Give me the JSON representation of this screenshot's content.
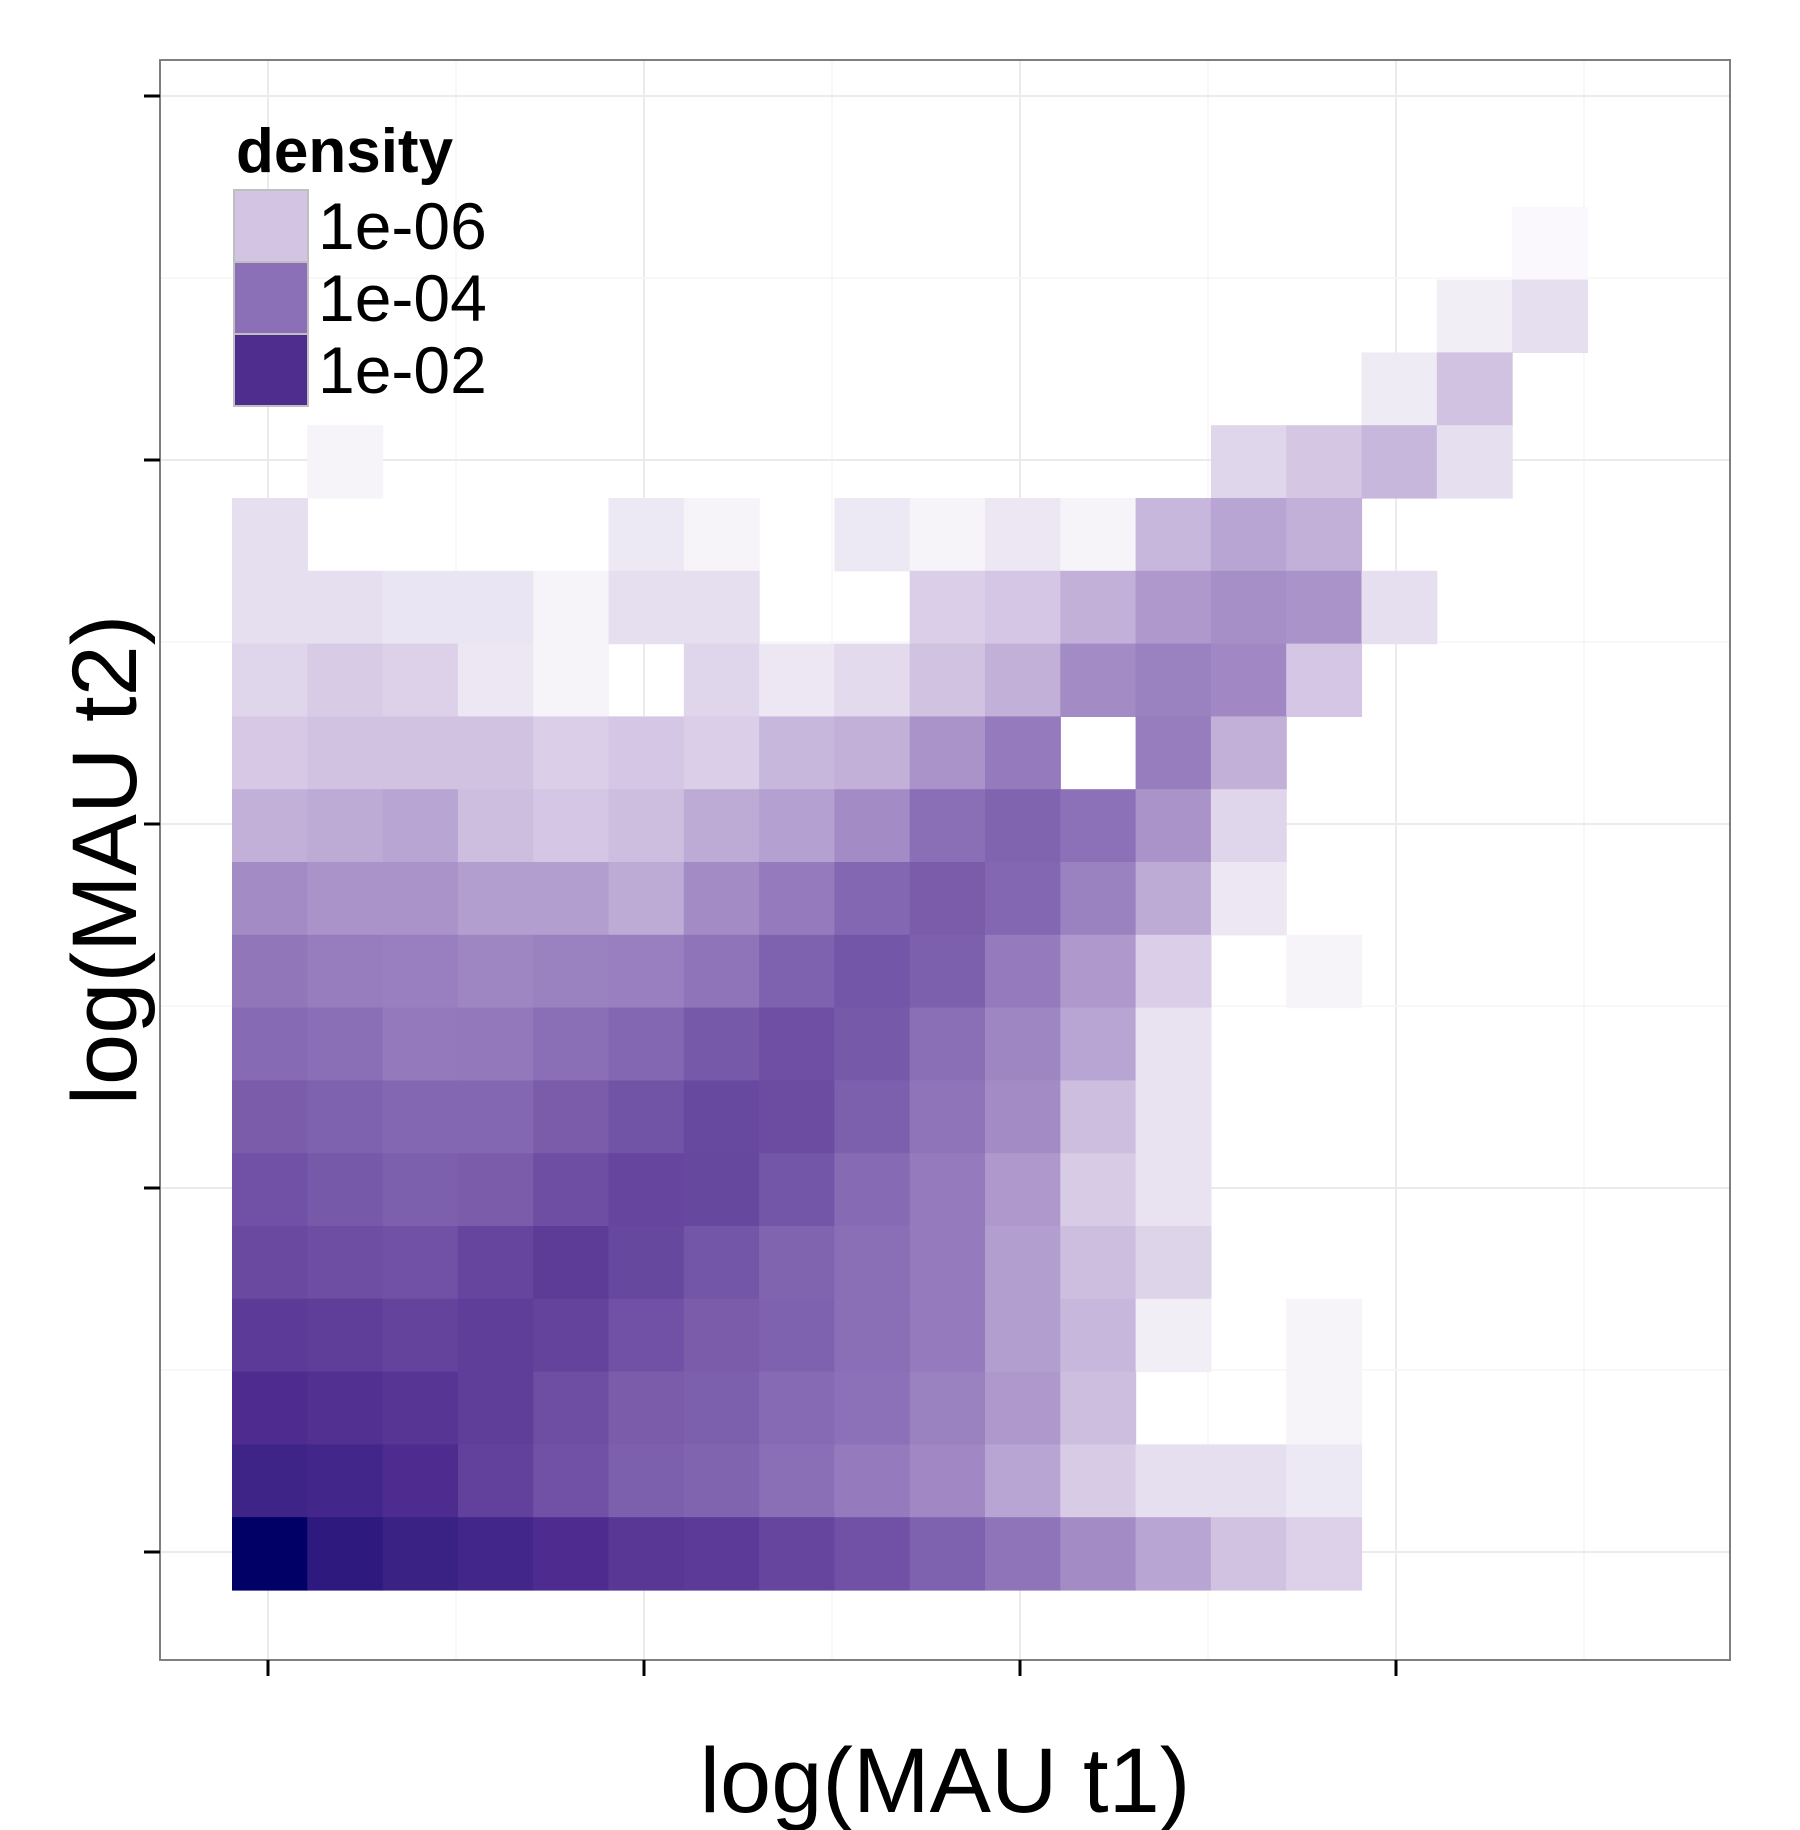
{
  "chart_data": {
    "type": "heatmap",
    "title": "",
    "xlabel": "log(MAU t1)",
    "ylabel": "log(MAU t2)",
    "x_tick_labels": [],
    "y_tick_labels": [],
    "grid": true,
    "theme": "bw",
    "color_scale": {
      "type": "log",
      "low_color": "#ffffff",
      "high_color": "#000066"
    },
    "legend": {
      "title": "density",
      "placement": "top-left inside plot",
      "entries": [
        {
          "label": "1e-06",
          "color": "#d3c4e3"
        },
        {
          "label": "1e-04",
          "color": "#8c70b7"
        },
        {
          "label": "1e-02",
          "color": "#4f2d8f"
        }
      ]
    },
    "grid_rows": 16,
    "grid_cols": 18,
    "row_order": "top-to-bottom",
    "cells": [
      [
        null,
        null,
        null,
        null,
        null,
        null,
        null,
        null,
        null,
        null,
        null,
        null,
        null,
        null,
        null,
        null,
        null,
        null
      ],
      [
        null,
        null,
        null,
        null,
        null,
        null,
        null,
        null,
        null,
        null,
        null,
        null,
        null,
        null,
        null,
        null,
        null,
        5e-09
      ],
      [
        null,
        null,
        null,
        null,
        null,
        null,
        null,
        null,
        null,
        null,
        null,
        null,
        null,
        null,
        null,
        null,
        2e-08,
        1e-07
      ],
      [
        null,
        null,
        null,
        null,
        null,
        null,
        null,
        null,
        null,
        null,
        null,
        null,
        null,
        null,
        null,
        3e-08,
        1e-06,
        null
      ],
      [
        null,
        1e-08,
        null,
        null,
        null,
        null,
        null,
        null,
        null,
        null,
        null,
        null,
        null,
        2e-07,
        7e-07,
        1.5e-06,
        1e-07,
        null
      ],
      [
        1e-07,
        null,
        null,
        null,
        null,
        4e-08,
        1e-08,
        null,
        4e-08,
        1e-08,
        5e-08,
        1e-08,
        1.5e-06,
        3e-06,
        2e-06,
        null,
        null,
        null
      ],
      [
        1e-07,
        1e-07,
        6e-08,
        6e-08,
        1e-08,
        1e-07,
        1e-07,
        null,
        null,
        4e-07,
        8e-07,
        2e-06,
        5e-06,
        7e-06,
        6e-06,
        1e-07,
        null,
        null
      ],
      [
        2e-07,
        5e-07,
        3e-07,
        5e-08,
        1e-08,
        null,
        2e-07,
        5e-08,
        1.5e-07,
        1e-06,
        2e-06,
        8e-06,
        1.2e-05,
        9e-06,
        8e-07,
        null,
        null,
        null
      ],
      [
        6e-07,
        1e-06,
        1e-06,
        1e-06,
        4e-07,
        8e-07,
        4e-07,
        1.5e-06,
        2e-06,
        6e-06,
        1.5e-05,
        null,
        1.4e-05,
        2e-06,
        null,
        null,
        null,
        null
      ],
      [
        2e-06,
        2.5e-06,
        3e-06,
        1.2e-06,
        8e-07,
        1.2e-06,
        2.5e-06,
        3.5e-06,
        8e-06,
        2.5e-05,
        4e-05,
        2.2e-05,
        6e-06,
        2e-07,
        null,
        null,
        null,
        null
      ],
      [
        8e-06,
        6e-06,
        6e-06,
        4e-06,
        4e-06,
        2.5e-06,
        8e-06,
        1.5e-05,
        3.5e-05,
        6e-05,
        3.5e-05,
        1.2e-05,
        2.5e-06,
        5e-08,
        null,
        null,
        null,
        null
      ],
      [
        1.8e-05,
        1.4e-05,
        1.3e-05,
        1e-05,
        1.2e-05,
        1.3e-05,
        2e-05,
        4.5e-05,
        8e-05,
        5e-05,
        1.5e-05,
        5e-06,
        4e-07,
        null,
        1e-08,
        null,
        null,
        null
      ],
      [
        3e-05,
        2.5e-05,
        1.6e-05,
        1.7e-05,
        2.5e-05,
        3.5e-05,
        7e-05,
        0.00011,
        7e-05,
        2.5e-05,
        1e-05,
        3e-06,
        7e-08,
        null,
        null,
        null,
        null,
        null
      ],
      [
        6e-05,
        4.5e-05,
        3.5e-05,
        3.5e-05,
        6e-05,
        9e-05,
        0.00015,
        0.00013,
        5e-05,
        2e-05,
        8e-06,
        1.2e-06,
        7e-08,
        null,
        null,
        null,
        null,
        null
      ],
      [
        0.0001,
        7e-05,
        5e-05,
        6e-05,
        0.00012,
        0.00018,
        0.00016,
        8e-05,
        3e-05,
        1.5e-05,
        5e-06,
        5e-07,
        7e-08,
        null,
        null,
        null,
        null,
        null
      ],
      [
        0.00014,
        0.00012,
        0.0001,
        0.00018,
        0.00028,
        0.00016,
        8e-05,
        4e-05,
        2.5e-05,
        1.5e-05,
        4e-06,
        1.2e-06,
        2.5e-07,
        null,
        null,
        null,
        null,
        null
      ]
    ],
    "extra_bottom_rows": [
      [
        0.0003,
        0.00026,
        0.0002,
        0.00025,
        0.0002,
        0.0001,
        6e-05,
        4.5e-05,
        2.5e-05,
        1.5e-05,
        4e-06,
        1.5e-06,
        2e-08,
        null,
        1e-08,
        null,
        null,
        null
      ],
      [
        0.0006,
        0.0005,
        0.0004,
        0.00025,
        0.00012,
        6e-05,
        5e-05,
        3e-05,
        2.2e-05,
        1.2e-05,
        5e-06,
        1.2e-06,
        null,
        null,
        1e-08,
        null,
        null,
        null
      ],
      [
        0.0012,
        0.001,
        0.0006,
        0.00022,
        0.0001,
        5e-05,
        4e-05,
        2.5e-05,
        1.5e-05,
        9e-06,
        3e-06,
        5e-07,
        1e-07,
        1e-07,
        4e-08,
        null,
        null,
        null
      ],
      [
        0.02,
        0.0025,
        0.0015,
        0.001,
        0.0006,
        0.00035,
        0.0003,
        0.00018,
        0.0001,
        4.5e-05,
        2e-05,
        8e-06,
        3e-06,
        1e-06,
        3e-07,
        null,
        null,
        null
      ]
    ]
  }
}
